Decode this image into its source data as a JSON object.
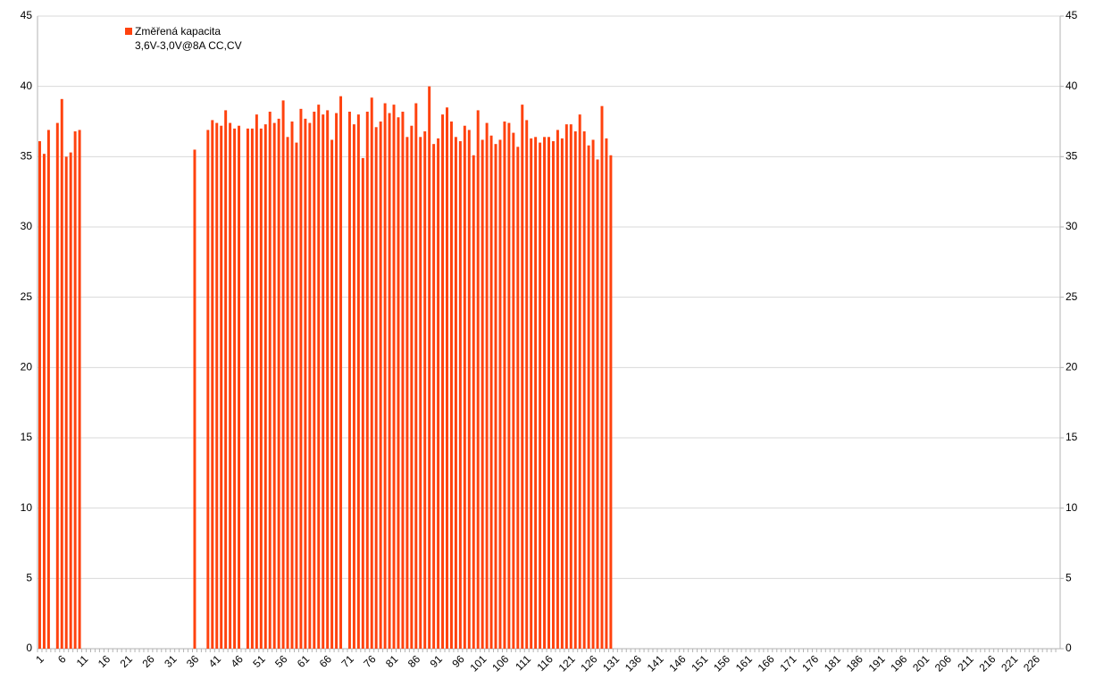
{
  "chart_data": {
    "type": "bar",
    "categories": [
      "1",
      null,
      null,
      null,
      null,
      "6",
      null,
      null,
      null,
      null,
      "11",
      null,
      null,
      null,
      null,
      "16",
      null,
      null,
      null,
      null,
      "21",
      null,
      null,
      null,
      null,
      "26",
      null,
      null,
      null,
      null,
      "31",
      null,
      null,
      null,
      null,
      "36",
      null,
      null,
      null,
      null,
      "41",
      null,
      null,
      null,
      null,
      "46",
      null,
      null,
      null,
      null,
      "51",
      null,
      null,
      null,
      null,
      "56",
      null,
      null,
      null,
      null,
      "61",
      null,
      null,
      null,
      null,
      "66",
      null,
      null,
      null,
      null,
      "71",
      null,
      null,
      null,
      null,
      "76",
      null,
      null,
      null,
      null,
      "81",
      null,
      null,
      null,
      null,
      "86",
      null,
      null,
      null,
      null,
      "91",
      null,
      null,
      null,
      null,
      "96",
      null,
      null,
      null,
      null,
      "101",
      null,
      null,
      null,
      null,
      "106",
      null,
      null,
      null,
      null,
      "111",
      null,
      null,
      null,
      null,
      "116",
      null,
      null,
      null,
      null,
      "121",
      null,
      null,
      null,
      null,
      "126",
      null,
      null,
      null,
      null,
      "131",
      null,
      null,
      null,
      null,
      "136",
      null,
      null,
      null,
      null,
      "141",
      null,
      null,
      null,
      null,
      "146",
      null,
      null,
      null,
      null,
      "151",
      null,
      null,
      null,
      null,
      "156",
      null,
      null,
      null,
      null,
      "161",
      null,
      null,
      null,
      null,
      "166",
      null,
      null,
      null,
      null,
      "171",
      null,
      null,
      null,
      null,
      "176",
      null,
      null,
      null,
      null,
      "181",
      null,
      null,
      null,
      null,
      "186",
      null,
      null,
      null,
      null,
      "191",
      null,
      null,
      null,
      null,
      "196",
      null,
      null,
      null,
      null,
      "201",
      null,
      null,
      null,
      null,
      "206",
      null,
      null,
      null,
      null,
      "211",
      null,
      null,
      null,
      null,
      "216",
      null,
      null,
      null,
      null,
      "221",
      null,
      null,
      null,
      null,
      "226",
      null,
      null,
      null,
      null,
      null
    ],
    "series": [
      {
        "name": "Změřená kapacita",
        "note": "3,6V-3,0V@8A CC,CV",
        "color": "#ff420e",
        "values": [
          36.1,
          35.2,
          36.9,
          null,
          37.4,
          39.1,
          35.0,
          35.3,
          36.8,
          36.9,
          null,
          null,
          null,
          null,
          null,
          null,
          null,
          null,
          null,
          null,
          null,
          null,
          null,
          null,
          null,
          null,
          null,
          null,
          null,
          null,
          null,
          null,
          null,
          null,
          null,
          35.5,
          null,
          null,
          36.9,
          37.6,
          37.4,
          37.2,
          38.3,
          37.4,
          37.0,
          37.2,
          null,
          37.0,
          37.0,
          38.0,
          37.0,
          37.3,
          38.2,
          37.4,
          37.7,
          39.0,
          36.4,
          37.5,
          36.0,
          38.4,
          37.7,
          37.4,
          38.2,
          38.7,
          38.0,
          38.3,
          36.2,
          38.1,
          39.3,
          null,
          38.2,
          37.3,
          38.0,
          34.9,
          38.2,
          39.2,
          37.1,
          37.5,
          38.8,
          38.1,
          38.7,
          37.8,
          38.2,
          36.4,
          37.2,
          38.8,
          36.4,
          36.8,
          40.0,
          35.9,
          36.3,
          38.0,
          38.5,
          37.5,
          36.4,
          36.1,
          37.2,
          36.9,
          35.1,
          38.3,
          36.2,
          37.4,
          36.5,
          35.9,
          36.2,
          37.5,
          37.4,
          36.7,
          35.7,
          38.7,
          37.6,
          36.3,
          36.4,
          36.0,
          36.4,
          36.4,
          36.1,
          36.9,
          36.3,
          37.3,
          37.3,
          36.8,
          38.0,
          36.8,
          35.8,
          36.2,
          34.8,
          38.6,
          36.3,
          35.1,
          null,
          null,
          null,
          null,
          null,
          null,
          null,
          null,
          null,
          null,
          null,
          null,
          null,
          null,
          null,
          null,
          null,
          null,
          null,
          null,
          null,
          null,
          null,
          null,
          null,
          null,
          null,
          null,
          null,
          null,
          null,
          null,
          null,
          null,
          null,
          null,
          null,
          null,
          null,
          null,
          null,
          null,
          null,
          null,
          null,
          null,
          null,
          null,
          null,
          null,
          null,
          null,
          null,
          null,
          null,
          null,
          null,
          null,
          null,
          null,
          null,
          null,
          null,
          null,
          null,
          null,
          null,
          null,
          null,
          null,
          null,
          null,
          null,
          null,
          null,
          null,
          null,
          null,
          null,
          null,
          null,
          null,
          null,
          null,
          null,
          null,
          null,
          null,
          null,
          null,
          null,
          null,
          null,
          null,
          null,
          null,
          null,
          null,
          null,
          null,
          null
        ]
      }
    ],
    "ylim": [
      0,
      45
    ],
    "yticks": [
      0,
      5,
      10,
      15,
      20,
      25,
      30,
      35,
      40,
      45
    ],
    "y2lim": [
      0,
      45
    ],
    "y2ticks": [
      0,
      5,
      10,
      15,
      20,
      25,
      30,
      35,
      40,
      45
    ],
    "grid": true,
    "legend": "top-left"
  }
}
